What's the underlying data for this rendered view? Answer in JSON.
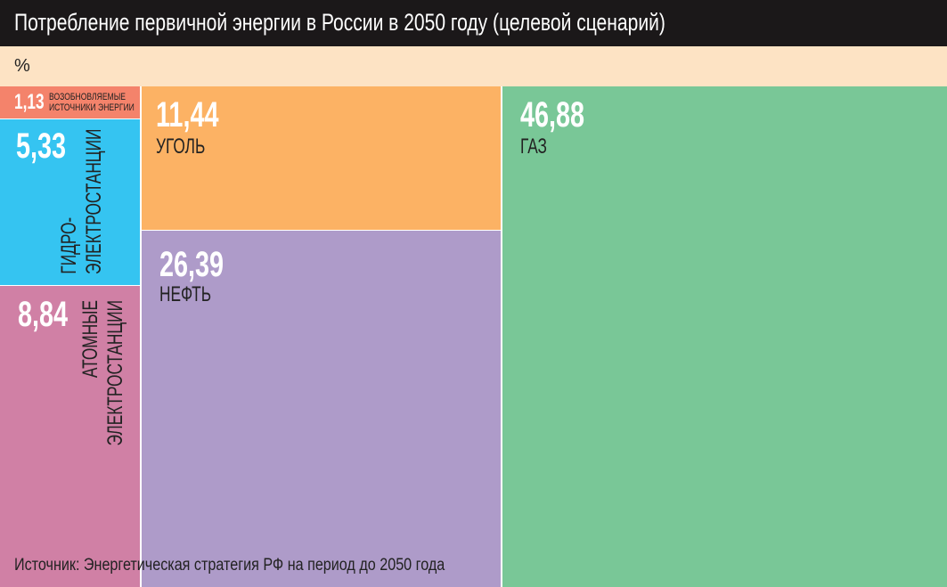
{
  "chart_data": {
    "type": "treemap",
    "title": "Потребление первичной энергии в России в 2050 году (целевой сценарий)",
    "unit": "%",
    "source": "Источник: Энергетическая стратегия РФ на период до 2050 года",
    "items": [
      {
        "label": "ВОЗОБНОВЛЯЕМЫЕ ИСТОЧНИКИ ЭНЕРГИИ",
        "lines": [
          "ВОЗОБНОВЛЯЕМЫЕ",
          "ИСТОЧНИКИ ЭНЕРГИИ"
        ],
        "value": 1.13,
        "value_text": "1,13",
        "color": "#f4836b"
      },
      {
        "label": "ГИДРОЭЛЕКТРОСТАНЦИИ",
        "lines": [
          "ГИДРО-",
          "ЭЛЕКТРОСТАНЦИИ"
        ],
        "value": 5.33,
        "value_text": "5,33",
        "color": "#35c4f1"
      },
      {
        "label": "АТОМНЫЕ ЭЛЕКТРОСТАНЦИИ",
        "lines": [
          "АТОМНЫЕ",
          "ЭЛЕКТРОСТАНЦИИ"
        ],
        "value": 8.84,
        "value_text": "8,84",
        "color": "#d080a5"
      },
      {
        "label": "УГОЛЬ",
        "value": 11.44,
        "value_text": "11,44",
        "color": "#fcb264"
      },
      {
        "label": "НЕФТЬ",
        "value": 26.39,
        "value_text": "26,39",
        "color": "#ae9bc9"
      },
      {
        "label": "ГАЗ",
        "value": 46.88,
        "value_text": "46,88",
        "color": "#79c797"
      }
    ]
  }
}
